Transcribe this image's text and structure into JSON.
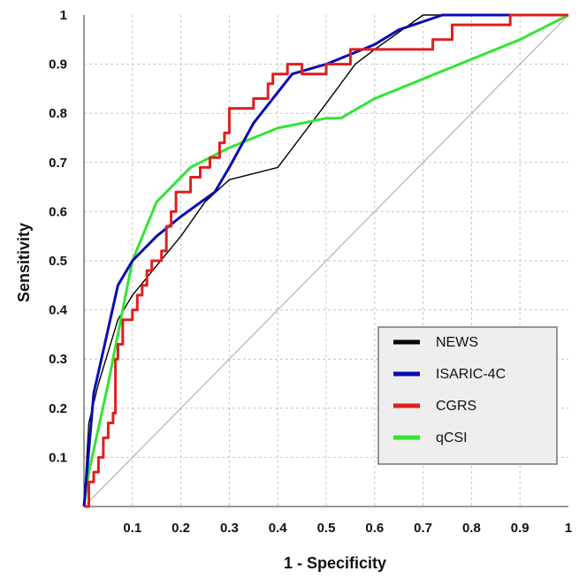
{
  "chart_data": {
    "type": "line",
    "title": "",
    "xlabel": "1 - Specificity",
    "ylabel": "Sensitivity",
    "xlim": [
      0,
      1
    ],
    "ylim": [
      0,
      1
    ],
    "x_ticks": [
      "0.1",
      "0.2",
      "0.3",
      "0.4",
      "0.5",
      "0.6",
      "0.7",
      "0.8",
      "0.9",
      "1"
    ],
    "y_ticks": [
      "0.1",
      "0.2",
      "0.3",
      "0.4",
      "0.5",
      "0.6",
      "0.7",
      "0.8",
      "0.9",
      "1"
    ],
    "grid": true,
    "legend_position": "bottom-right",
    "reference_line": {
      "x": [
        0,
        1
      ],
      "y": [
        0,
        1
      ],
      "color": "#b8b8b8"
    },
    "series": [
      {
        "name": "NEWS",
        "color": "#000000",
        "x": [
          0,
          0.01,
          0.03,
          0.07,
          0.1,
          0.15,
          0.2,
          0.25,
          0.3,
          0.4,
          0.5,
          0.56,
          0.6,
          0.7,
          0.75,
          1
        ],
        "y": [
          0,
          0.17,
          0.25,
          0.38,
          0.43,
          0.49,
          0.55,
          0.62,
          0.665,
          0.69,
          0.82,
          0.9,
          0.93,
          1,
          1,
          1
        ]
      },
      {
        "name": "ISARIC-4C",
        "color": "#0a0ab4",
        "x": [
          0,
          0.02,
          0.07,
          0.1,
          0.15,
          0.2,
          0.27,
          0.3,
          0.35,
          0.43,
          0.5,
          0.6,
          0.65,
          0.74,
          1
        ],
        "y": [
          0,
          0.23,
          0.45,
          0.5,
          0.55,
          0.59,
          0.64,
          0.69,
          0.78,
          0.88,
          0.9,
          0.94,
          0.97,
          1,
          1
        ]
      },
      {
        "name": "CGRS",
        "color": "#e01e1e",
        "x": [
          0,
          0.01,
          0.01,
          0.02,
          0.02,
          0.03,
          0.03,
          0.04,
          0.04,
          0.05,
          0.05,
          0.06,
          0.06,
          0.065,
          0.065,
          0.07,
          0.07,
          0.08,
          0.08,
          0.1,
          0.1,
          0.11,
          0.11,
          0.12,
          0.12,
          0.13,
          0.13,
          0.14,
          0.14,
          0.16,
          0.16,
          0.17,
          0.17,
          0.18,
          0.18,
          0.19,
          0.19,
          0.22,
          0.22,
          0.24,
          0.24,
          0.26,
          0.26,
          0.28,
          0.28,
          0.29,
          0.29,
          0.3,
          0.3,
          0.35,
          0.35,
          0.38,
          0.38,
          0.39,
          0.39,
          0.42,
          0.42,
          0.45,
          0.45,
          0.5,
          0.5,
          0.55,
          0.55,
          0.6,
          0.6,
          0.72,
          0.72,
          0.76,
          0.76,
          0.8,
          0.8,
          0.88,
          0.88,
          1
        ],
        "y": [
          0,
          0,
          0.05,
          0.05,
          0.07,
          0.07,
          0.1,
          0.1,
          0.14,
          0.14,
          0.17,
          0.17,
          0.19,
          0.19,
          0.3,
          0.3,
          0.33,
          0.33,
          0.38,
          0.38,
          0.4,
          0.4,
          0.43,
          0.43,
          0.45,
          0.45,
          0.48,
          0.48,
          0.5,
          0.5,
          0.52,
          0.52,
          0.57,
          0.57,
          0.6,
          0.6,
          0.64,
          0.64,
          0.67,
          0.67,
          0.69,
          0.69,
          0.71,
          0.71,
          0.74,
          0.74,
          0.76,
          0.76,
          0.81,
          0.81,
          0.83,
          0.83,
          0.86,
          0.86,
          0.88,
          0.88,
          0.9,
          0.9,
          0.88,
          0.88,
          0.9,
          0.9,
          0.93,
          0.93,
          0.93,
          0.93,
          0.95,
          0.95,
          0.98,
          0.98,
          0.98,
          0.98,
          1,
          1
        ]
      },
      {
        "name": "qCSI",
        "color": "#33e433",
        "x": [
          0,
          0.01,
          0.05,
          0.08,
          0.1,
          0.15,
          0.22,
          0.3,
          0.4,
          0.5,
          0.53,
          0.6,
          0.7,
          0.8,
          0.9,
          1
        ],
        "y": [
          0,
          0.07,
          0.25,
          0.4,
          0.5,
          0.62,
          0.69,
          0.73,
          0.77,
          0.79,
          0.79,
          0.83,
          0.87,
          0.91,
          0.95,
          1
        ]
      }
    ]
  }
}
